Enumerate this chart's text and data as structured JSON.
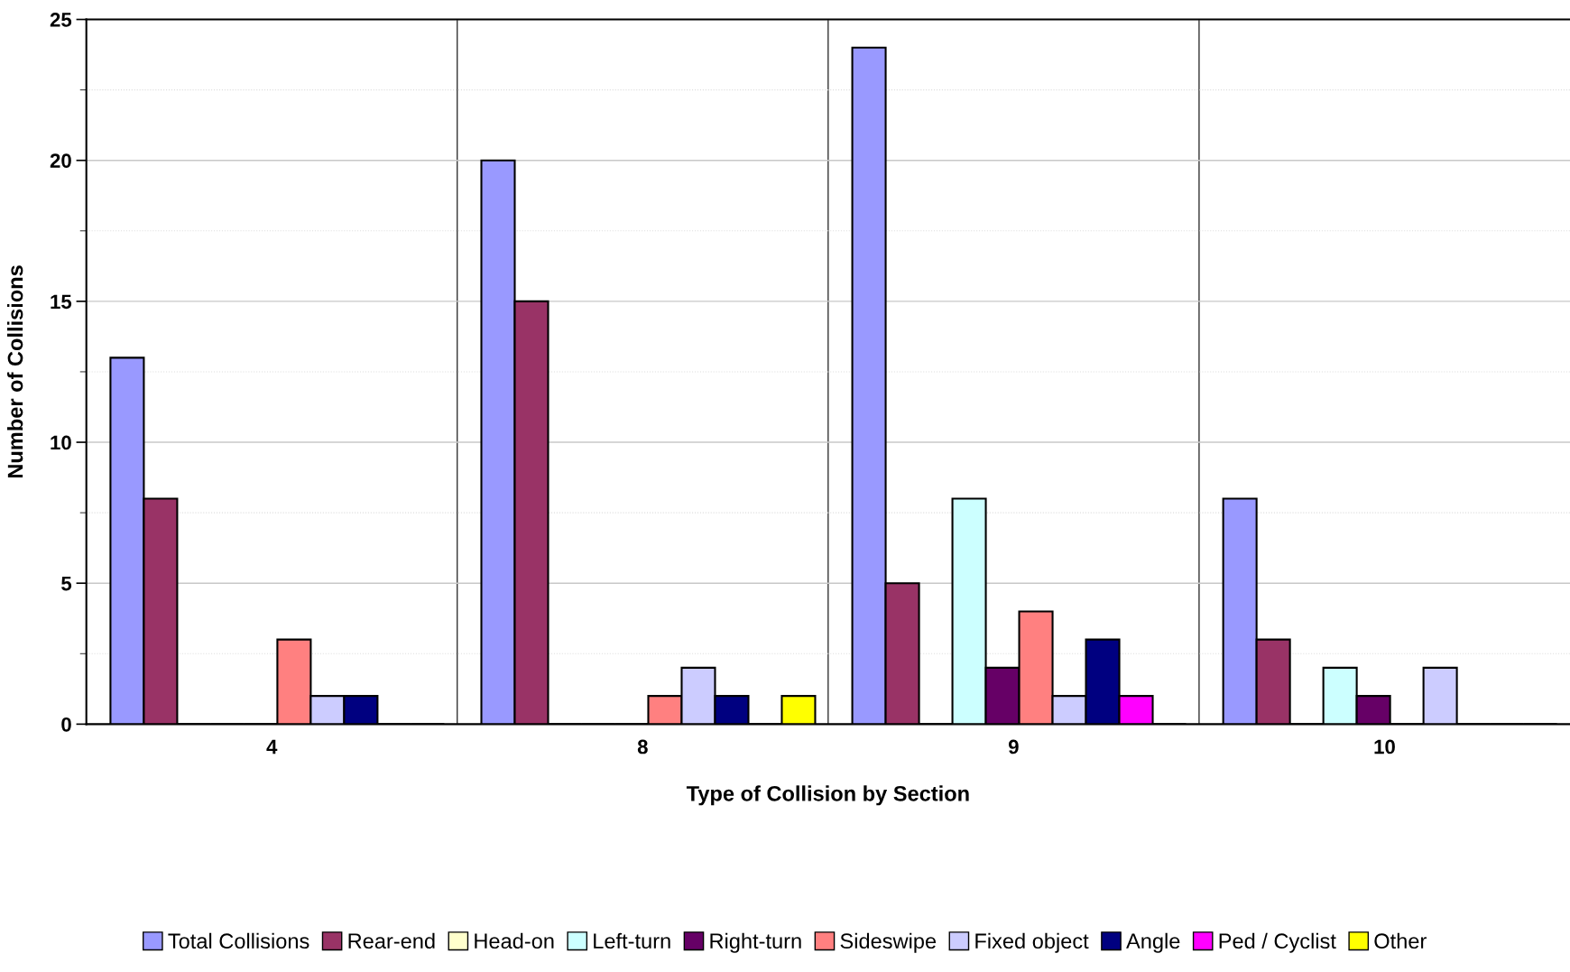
{
  "chart_data": {
    "type": "bar",
    "xlabel": "Type of Collision by Section",
    "ylabel": "Number of Collisions",
    "categories": [
      "4",
      "8",
      "9",
      "10"
    ],
    "series": [
      {
        "name": "Total Collisions",
        "color": "#9999ff",
        "values": [
          13,
          20,
          24,
          8
        ]
      },
      {
        "name": "Rear-end",
        "color": "#993366",
        "values": [
          8,
          15,
          5,
          3
        ]
      },
      {
        "name": "Head-on",
        "color": "#ffffcc",
        "values": [
          0,
          0,
          0,
          0
        ]
      },
      {
        "name": "Left-turn",
        "color": "#ccffff",
        "values": [
          0,
          0,
          8,
          2
        ]
      },
      {
        "name": "Right-turn",
        "color": "#660066",
        "values": [
          0,
          0,
          2,
          1
        ]
      },
      {
        "name": "Sideswipe",
        "color": "#ff8080",
        "values": [
          3,
          1,
          4,
          0
        ]
      },
      {
        "name": "Fixed object",
        "color": "#ccccff",
        "values": [
          1,
          2,
          1,
          2
        ]
      },
      {
        "name": "Angle",
        "color": "#000080",
        "values": [
          1,
          1,
          3,
          0
        ]
      },
      {
        "name": "Ped / Cyclist",
        "color": "#ff00ff",
        "values": [
          0,
          0,
          1,
          0
        ]
      },
      {
        "name": "Other",
        "color": "#ffff00",
        "values": [
          0,
          1,
          0,
          0
        ]
      }
    ],
    "ylim": [
      0,
      25
    ],
    "yticks": [
      0,
      5,
      10,
      15,
      20,
      25
    ],
    "grid": true,
    "legend": "bottom"
  }
}
